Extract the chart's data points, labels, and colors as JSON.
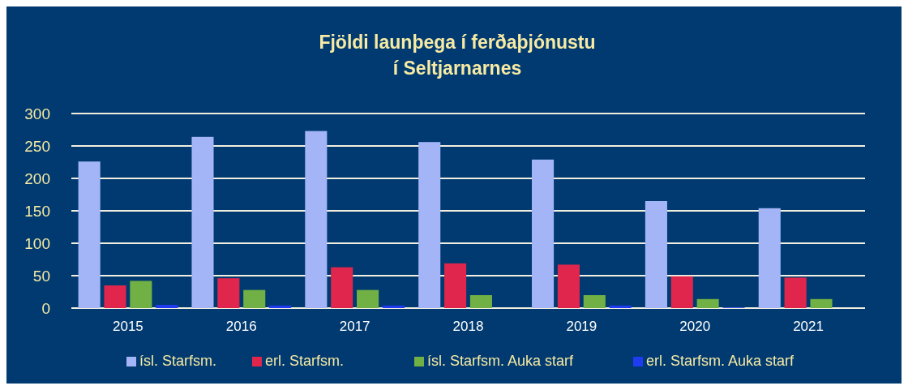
{
  "chart_data": {
    "type": "bar",
    "title": "Fjöldi launþega í ferðaþjónustu\ní Seltjarnarnes",
    "categories": [
      "2015",
      "2016",
      "2017",
      "2018",
      "2019",
      "2020",
      "2021"
    ],
    "series": [
      {
        "name": "ísl. Starfsm.",
        "color": "#a3b5f7",
        "values": [
          226,
          264,
          273,
          256,
          229,
          165,
          154
        ]
      },
      {
        "name": "erl. Starfsm.",
        "color": "#e0264c",
        "values": [
          35,
          46,
          63,
          69,
          67,
          49,
          47
        ]
      },
      {
        "name": "ísl. Starfsm. Auka starf",
        "color": "#70b044",
        "values": [
          42,
          28,
          28,
          20,
          20,
          14,
          14
        ]
      },
      {
        "name": "erl. Starfsm. Auka starf",
        "color": "#1f3cf0",
        "values": [
          5,
          4,
          4,
          0,
          4,
          1,
          0
        ]
      }
    ],
    "ylim": [
      0,
      300
    ],
    "yticks": [
      0,
      50,
      100,
      150,
      200,
      250,
      300
    ],
    "grid": "y",
    "legend": "bottom"
  }
}
